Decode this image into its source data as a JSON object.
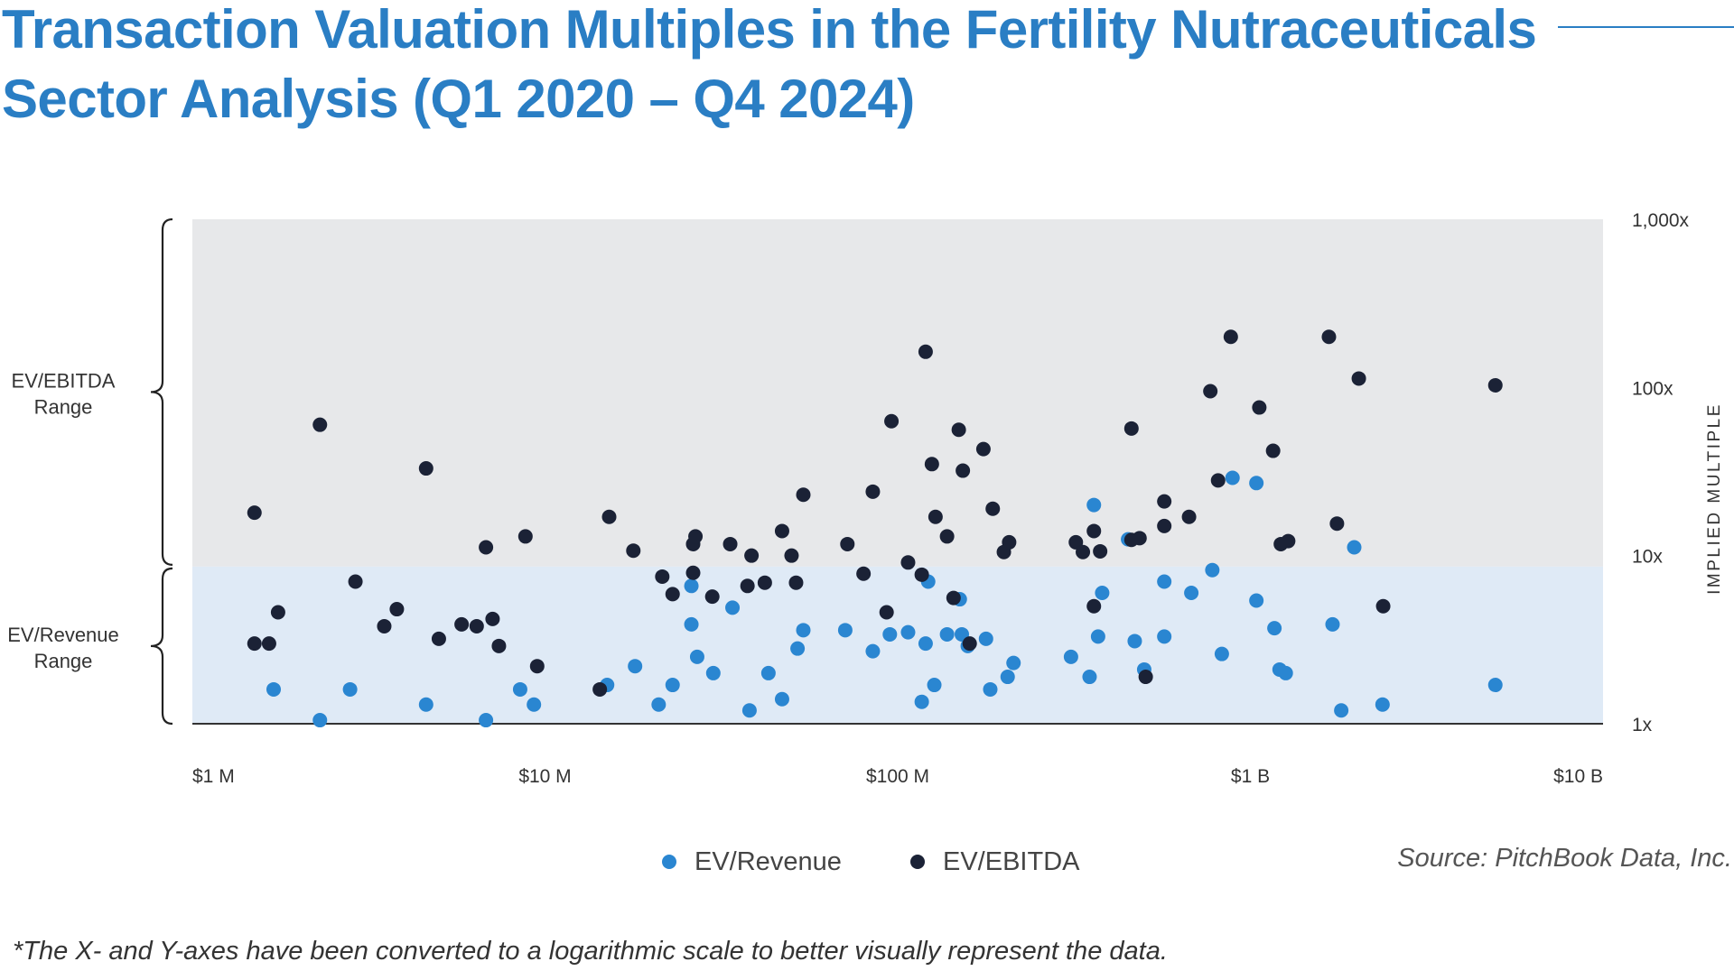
{
  "title": "Transaction Valuation Multiples in the Fertility Nutraceuticals Sector Analysis (Q1 2020 – Q4 2024)",
  "legend": {
    "revenue_label": "EV/Revenue",
    "ebitda_label": "EV/EBITDA"
  },
  "source": "Source: PitchBook Data, Inc.",
  "footnote": "*The X- and Y-axes have been converted to a logarithmic scale to better visually represent the data.",
  "colors": {
    "revenue": "#2a86d1",
    "ebitda": "#1b2236",
    "title": "#2a7ec4",
    "ebitda_band": "#e7e8ea",
    "revenue_band": "#dfeaf6"
  },
  "chart_data": {
    "type": "scatter",
    "title": "",
    "xlabel": "",
    "ylabel": "IMPLIED MULTIPLE",
    "x_scale": "log",
    "y_scale": "log",
    "xlim": [
      1000000,
      10000000000
    ],
    "ylim": [
      1,
      1000
    ],
    "x_ticks": [
      {
        "value": 1000000,
        "label": "$1 M"
      },
      {
        "value": 10000000,
        "label": "$10 M"
      },
      {
        "value": 100000000,
        "label": "$100 M"
      },
      {
        "value": 1000000000,
        "label": "$1 B"
      },
      {
        "value": 10000000000,
        "label": "$10 B"
      }
    ],
    "y_ticks": [
      {
        "value": 1,
        "label": "1x"
      },
      {
        "value": 10,
        "label": "10x"
      },
      {
        "value": 100,
        "label": "100x"
      },
      {
        "value": 1000,
        "label": "1,000x"
      }
    ],
    "bands": [
      {
        "label": "EV/EBITDA Range",
        "lines": [
          "EV/EBITDA",
          "Range"
        ],
        "from": 8.6,
        "to": 1000
      },
      {
        "label": "EV/Revenue Range",
        "lines": [
          "EV/Revenue",
          "Range"
        ],
        "from": 1,
        "to": 8.6
      }
    ],
    "grid": false,
    "legend_position": "bottom",
    "series": [
      {
        "name": "EV/Revenue",
        "points": [
          [
            1700000.0,
            1.6
          ],
          [
            2300000.0,
            1.05
          ],
          [
            2800000.0,
            1.6
          ],
          [
            4600000.0,
            1.3
          ],
          [
            6800000.0,
            1.05
          ],
          [
            8500000.0,
            1.6
          ],
          [
            9300000.0,
            1.3
          ],
          [
            15000000.0,
            1.7
          ],
          [
            18000000.0,
            2.2
          ],
          [
            21000000.0,
            1.3
          ],
          [
            23000000.0,
            1.7
          ],
          [
            26000000.0,
            6.6
          ],
          [
            26000000.0,
            3.9
          ],
          [
            27000000.0,
            2.5
          ],
          [
            30000000.0,
            2.0
          ],
          [
            34000000.0,
            4.9
          ],
          [
            38000000.0,
            1.2
          ],
          [
            43000000.0,
            2.0
          ],
          [
            47000000.0,
            1.4
          ],
          [
            52000000.0,
            2.8
          ],
          [
            54000000.0,
            3.6
          ],
          [
            71000000.0,
            3.6
          ],
          [
            85000000.0,
            2.7
          ],
          [
            95000000.0,
            3.4
          ],
          [
            107000000.0,
            3.5
          ],
          [
            117000000.0,
            1.35
          ],
          [
            120000000.0,
            3.0
          ],
          [
            122000000.0,
            7.0
          ],
          [
            127000000.0,
            1.7
          ],
          [
            138000000.0,
            3.4
          ],
          [
            150000000.0,
            5.5
          ],
          [
            152000000.0,
            3.4
          ],
          [
            158000000.0,
            2.9
          ],
          [
            178000000.0,
            3.2
          ],
          [
            183000000.0,
            1.6
          ],
          [
            205000000.0,
            1.9
          ],
          [
            213000000.0,
            2.3
          ],
          [
            310000000.0,
            2.5
          ],
          [
            350000000.0,
            1.9
          ],
          [
            360000000.0,
            20
          ],
          [
            370000000.0,
            3.3
          ],
          [
            380000000.0,
            6.0
          ],
          [
            450000000.0,
            12.5
          ],
          [
            470000000.0,
            3.1
          ],
          [
            500000000.0,
            2.1
          ],
          [
            570000000.0,
            7.0
          ],
          [
            570000000.0,
            3.3
          ],
          [
            680000000.0,
            6.0
          ],
          [
            780000000.0,
            8.2
          ],
          [
            830000000.0,
            2.6
          ],
          [
            890000000.0,
            29
          ],
          [
            1040000000.0,
            27
          ],
          [
            1040000000.0,
            5.4
          ],
          [
            1170000000.0,
            3.7
          ],
          [
            1210000000.0,
            2.1
          ],
          [
            1260000000.0,
            2.0
          ],
          [
            1710000000.0,
            3.9
          ],
          [
            1810000000.0,
            1.2
          ],
          [
            1970000000.0,
            11.2
          ],
          [
            2370000000.0,
            1.3
          ],
          [
            4950000000.0,
            1.7
          ]
        ]
      },
      {
        "name": "EV/EBITDA",
        "points": [
          [
            1500000.0,
            18
          ],
          [
            1500000.0,
            3.0
          ],
          [
            1650000.0,
            3.0
          ],
          [
            1750000.0,
            4.6
          ],
          [
            2300000.0,
            60
          ],
          [
            2900000.0,
            7.0
          ],
          [
            3500000.0,
            3.8
          ],
          [
            3800000.0,
            4.8
          ],
          [
            4600000.0,
            33
          ],
          [
            5000000.0,
            3.2
          ],
          [
            5800000.0,
            3.9
          ],
          [
            6400000.0,
            3.8
          ],
          [
            6800000.0,
            11.2
          ],
          [
            7100000.0,
            4.2
          ],
          [
            7400000.0,
            2.9
          ],
          [
            8800000.0,
            13
          ],
          [
            9500000.0,
            2.2
          ],
          [
            14300000.0,
            1.6
          ],
          [
            15200000.0,
            17
          ],
          [
            17800000.0,
            10.7
          ],
          [
            21500000.0,
            7.5
          ],
          [
            23000000.0,
            5.9
          ],
          [
            26300000.0,
            11.7
          ],
          [
            26300000.0,
            7.9
          ],
          [
            26700000.0,
            13
          ],
          [
            29800000.0,
            5.7
          ],
          [
            33500000.0,
            11.7
          ],
          [
            37500000.0,
            6.6
          ],
          [
            38500000.0,
            10
          ],
          [
            42000000.0,
            6.9
          ],
          [
            47000000.0,
            14
          ],
          [
            50000000.0,
            10
          ],
          [
            51500000.0,
            6.9
          ],
          [
            54000000.0,
            23
          ],
          [
            72000000.0,
            11.7
          ],
          [
            80000000.0,
            7.8
          ],
          [
            85000000.0,
            24
          ],
          [
            93000000.0,
            4.6
          ],
          [
            96000000.0,
            63
          ],
          [
            107000000.0,
            9.1
          ],
          [
            117000000.0,
            7.7
          ],
          [
            120000000.0,
            163
          ],
          [
            125000000.0,
            35
          ],
          [
            128000000.0,
            17
          ],
          [
            138000000.0,
            13
          ],
          [
            144000000.0,
            5.6
          ],
          [
            149000000.0,
            56
          ],
          [
            153000000.0,
            32
          ],
          [
            160000000.0,
            3.0
          ],
          [
            175000000.0,
            43
          ],
          [
            186000000.0,
            19
          ],
          [
            200000000.0,
            10.5
          ],
          [
            207000000.0,
            12
          ],
          [
            320000000.0,
            12
          ],
          [
            335000000.0,
            10.5
          ],
          [
            360000000.0,
            14
          ],
          [
            360000000.0,
            5.0
          ],
          [
            375000000.0,
            10.6
          ],
          [
            460000000.0,
            57
          ],
          [
            460000000.0,
            12.4
          ],
          [
            485000000.0,
            12.7
          ],
          [
            505000000.0,
            1.9
          ],
          [
            570000000.0,
            21
          ],
          [
            570000000.0,
            15
          ],
          [
            670000000.0,
            17
          ],
          [
            770000000.0,
            95
          ],
          [
            810000000.0,
            28
          ],
          [
            880000000.0,
            200
          ],
          [
            1060000000.0,
            76
          ],
          [
            1160000000.0,
            42
          ],
          [
            1220000000.0,
            11.7
          ],
          [
            1280000000.0,
            12.2
          ],
          [
            1670000000.0,
            200
          ],
          [
            1760000000.0,
            15.5
          ],
          [
            2030000000.0,
            113
          ],
          [
            2380000000.0,
            5.0
          ],
          [
            4950000000.0,
            103
          ]
        ]
      }
    ]
  }
}
